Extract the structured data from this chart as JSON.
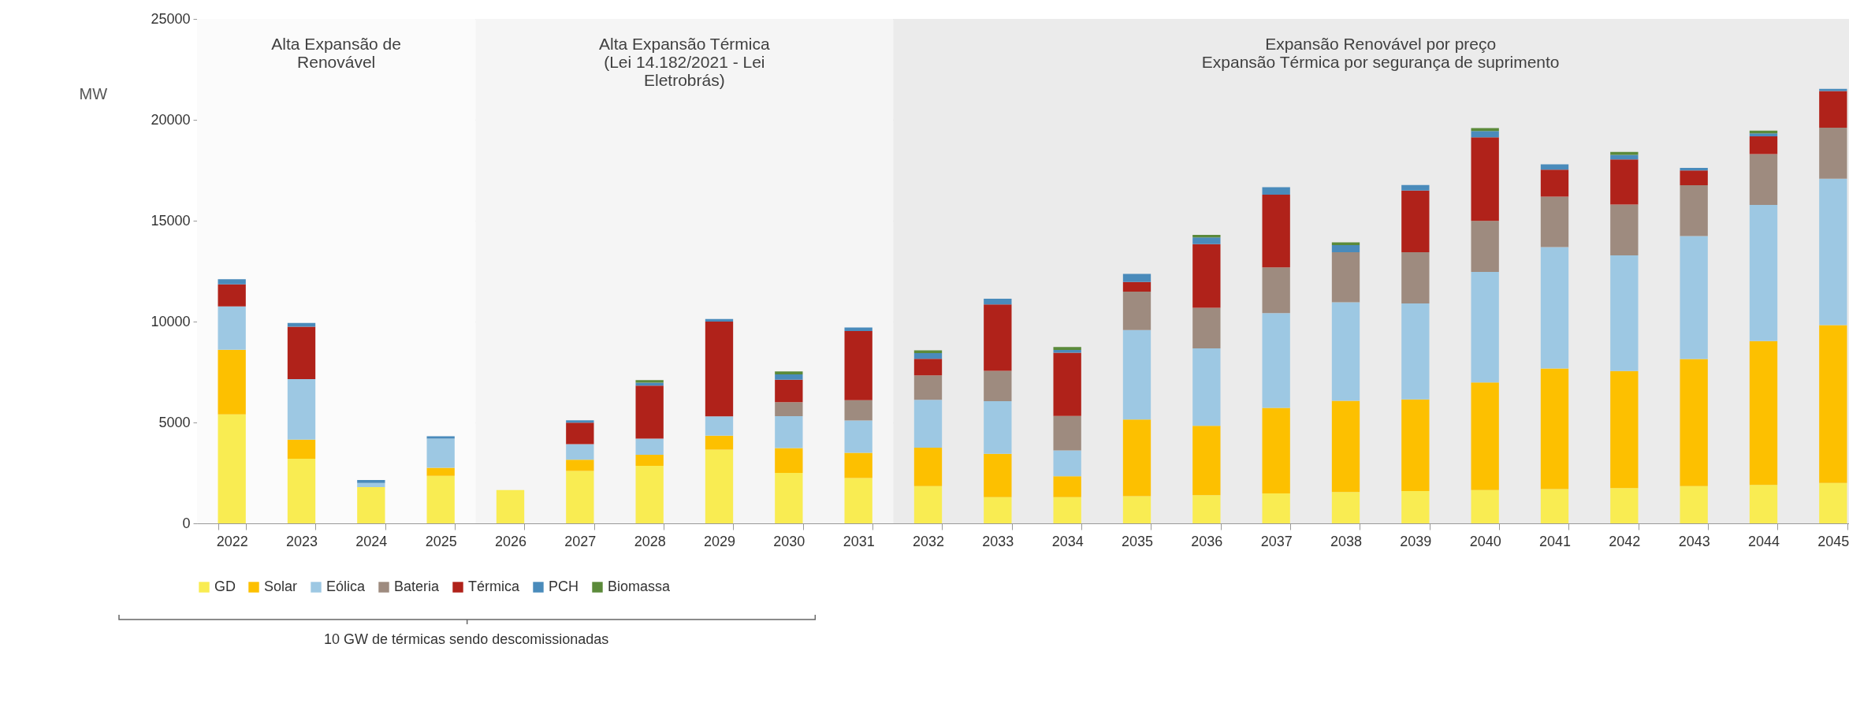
{
  "chart_data": {
    "type": "bar",
    "stacked": true,
    "ylabel": "MW",
    "categories": [
      "2022",
      "2023",
      "2024",
      "2025",
      "2026",
      "2027",
      "2028",
      "2029",
      "2030",
      "2031",
      "2032",
      "2033",
      "2034",
      "2035",
      "2036",
      "2037",
      "2038",
      "2039",
      "2040",
      "2041",
      "2042",
      "2043",
      "2044",
      "2045"
    ],
    "series": [
      {
        "name": "GD",
        "color": "#f9ec52",
        "values": [
          5400,
          3200,
          1800,
          2350,
          1650,
          2600,
          2850,
          3650,
          2500,
          2250,
          1850,
          1300,
          1300,
          1350,
          1400,
          1480,
          1550,
          1600,
          1650,
          1700,
          1750,
          1850,
          1900,
          2000
        ]
      },
      {
        "name": "Solar",
        "color": "#fdc000",
        "values": [
          3200,
          950,
          null,
          400,
          null,
          550,
          550,
          700,
          1230,
          1250,
          1900,
          2150,
          1030,
          3800,
          3430,
          4240,
          4520,
          4540,
          5330,
          5980,
          5800,
          6290,
          7130,
          7820
        ]
      },
      {
        "name": "Eólica",
        "color": "#9dc8e3",
        "values": [
          2150,
          3000,
          200,
          1450,
          null,
          780,
          800,
          950,
          1580,
          1600,
          2370,
          2600,
          1280,
          4430,
          3840,
          4700,
          4890,
          4760,
          5480,
          6010,
          5730,
          6100,
          6750,
          7260
        ]
      },
      {
        "name": "Bateria",
        "color": "#9e8b7f",
        "values": [
          null,
          null,
          null,
          null,
          null,
          null,
          null,
          null,
          700,
          1000,
          1210,
          1510,
          1710,
          1900,
          2010,
          2270,
          2480,
          2540,
          2530,
          2500,
          2520,
          2520,
          2520,
          2530
        ]
      },
      {
        "name": "Térmica",
        "color": "#b0221a",
        "values": [
          1100,
          2600,
          null,
          null,
          null,
          1060,
          2630,
          4700,
          1110,
          3430,
          820,
          3290,
          3140,
          480,
          3160,
          3600,
          null,
          3050,
          4140,
          1340,
          2240,
          730,
          880,
          1820
        ]
      },
      {
        "name": "PCH",
        "color": "#4a8bbb",
        "values": [
          250,
          180,
          150,
          120,
          null,
          120,
          140,
          130,
          260,
          180,
          290,
          280,
          130,
          400,
          330,
          370,
          350,
          280,
          310,
          260,
          220,
          130,
          150,
          100
        ]
      },
      {
        "name": "Biomassa",
        "color": "#5b8a3a",
        "values": [
          null,
          null,
          null,
          null,
          null,
          null,
          130,
          null,
          150,
          null,
          130,
          null,
          150,
          null,
          130,
          null,
          140,
          null,
          150,
          null,
          150,
          null,
          130,
          null
        ]
      }
    ],
    "ylim": [
      0,
      25000
    ],
    "yticks": [
      0,
      5000,
      10000,
      15000,
      20000,
      25000
    ],
    "grid": "y",
    "legend": "bottom",
    "bands": [
      {
        "axis": "x",
        "from": "2022",
        "to": "2025",
        "label": "Alta Expansão de\nRenovável",
        "color": "#fbfbfb"
      },
      {
        "axis": "x",
        "from": "2026",
        "to": "2031",
        "label": "Alta Expansão Térmica\n(Lei 14.182/2021 - Lei\nEletrobrás)",
        "color": "#f5f5f5"
      },
      {
        "axis": "x",
        "from": "2032",
        "to": "2045",
        "label": "Expansão Renovável por preço\nExpansão Térmica por segurança de suprimento",
        "color": "#ebebeb"
      }
    ],
    "annotations": [
      "10 GW de térmicas sendo descomissionadas"
    ]
  }
}
